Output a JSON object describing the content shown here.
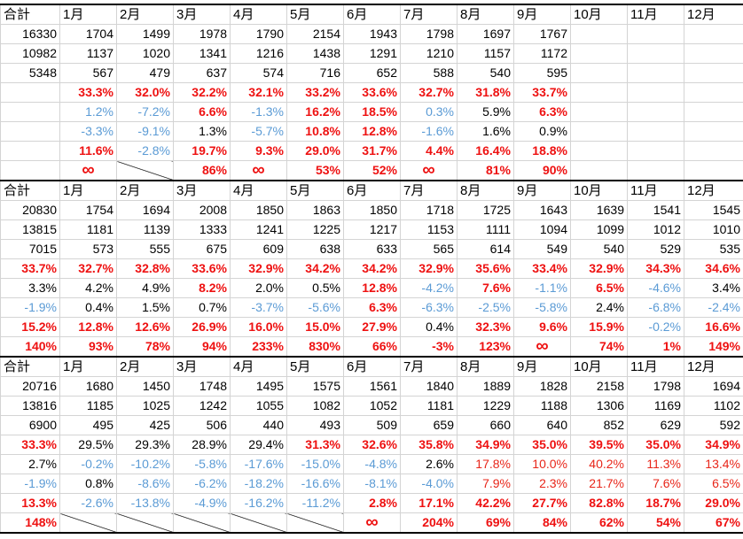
{
  "blocks": [
    {
      "header": [
        "合計",
        "1月",
        "2月",
        "3月",
        "4月",
        "5月",
        "6月",
        "7月",
        "8月",
        "9月",
        "10月",
        "11月",
        "12月"
      ],
      "rows": [
        [
          "16330",
          "1704",
          "1499",
          "1978",
          "1790",
          "2154",
          "1943",
          "1798",
          "1697",
          "1767",
          null,
          null,
          null
        ],
        [
          "10982",
          "1137",
          "1020",
          "1341",
          "1216",
          "1438",
          "1291",
          "1210",
          "1157",
          "1172",
          null,
          null,
          null
        ],
        [
          "5348",
          "567",
          "479",
          "637",
          "574",
          "716",
          "652",
          "588",
          "540",
          "595",
          null,
          null,
          null
        ],
        [
          null,
          "33.3%",
          "32.0%",
          "32.2%",
          "32.1%",
          "33.2%",
          "33.6%",
          "32.7%",
          "31.8%",
          "33.7%",
          null,
          null,
          null
        ],
        [
          null,
          "1.2%",
          "-7.2%",
          "6.6%",
          "-1.3%",
          "16.2%",
          "18.5%",
          "0.3%",
          "5.9%",
          "6.3%",
          null,
          null,
          null
        ],
        [
          null,
          "-3.3%",
          "-9.1%",
          "1.3%",
          "-5.7%",
          "10.8%",
          "12.8%",
          "-1.6%",
          "1.6%",
          "0.9%",
          null,
          null,
          null
        ],
        [
          null,
          "11.6%",
          "-2.8%",
          "19.7%",
          "9.3%",
          "29.0%",
          "31.7%",
          "4.4%",
          "16.4%",
          "18.8%",
          null,
          null,
          null
        ],
        [
          null,
          "∞",
          null,
          "86%",
          "∞",
          "53%",
          "52%",
          "∞",
          "81%",
          "90%",
          null,
          null,
          null
        ]
      ],
      "styles": [
        "black",
        "black",
        "black",
        "red-bold",
        [
          "black",
          "blue",
          "blue",
          "red-bold",
          "blue",
          "red-bold",
          "red-bold",
          "blue",
          "black",
          "red-bold",
          "black",
          "black",
          "black"
        ],
        [
          "black",
          "blue",
          "blue",
          "black",
          "blue",
          "red-bold",
          "red-bold",
          "blue",
          "black",
          "black",
          "black",
          "black",
          "black"
        ],
        [
          "black",
          "red-bold",
          "blue",
          "red-bold",
          "red-bold",
          "red-bold",
          "red-bold",
          "red-bold",
          "red-bold",
          "red-bold",
          "black",
          "black",
          "black"
        ],
        [
          "black",
          "red-bold",
          "diagonal",
          "red-bold",
          "red-bold",
          "red-bold",
          "red-bold",
          "red-bold",
          "red-bold",
          "red-bold",
          "black",
          "black",
          "black"
        ]
      ]
    },
    {
      "header": [
        "合計",
        "1月",
        "2月",
        "3月",
        "4月",
        "5月",
        "6月",
        "7月",
        "8月",
        "9月",
        "10月",
        "11月",
        "12月"
      ],
      "rows": [
        [
          "20830",
          "1754",
          "1694",
          "2008",
          "1850",
          "1863",
          "1850",
          "1718",
          "1725",
          "1643",
          "1639",
          "1541",
          "1545"
        ],
        [
          "13815",
          "1181",
          "1139",
          "1333",
          "1241",
          "1225",
          "1217",
          "1153",
          "1111",
          "1094",
          "1099",
          "1012",
          "1010"
        ],
        [
          "7015",
          "573",
          "555",
          "675",
          "609",
          "638",
          "633",
          "565",
          "614",
          "549",
          "540",
          "529",
          "535"
        ],
        [
          "33.7%",
          "32.7%",
          "32.8%",
          "33.6%",
          "32.9%",
          "34.2%",
          "34.2%",
          "32.9%",
          "35.6%",
          "33.4%",
          "32.9%",
          "34.3%",
          "34.6%"
        ],
        [
          "3.3%",
          "4.2%",
          "4.9%",
          "8.2%",
          "2.0%",
          "0.5%",
          "12.8%",
          "-4.2%",
          "7.6%",
          "-1.1%",
          "6.5%",
          "-4.6%",
          "3.4%"
        ],
        [
          "-1.9%",
          "0.4%",
          "1.5%",
          "0.7%",
          "-3.7%",
          "-5.6%",
          "6.3%",
          "-6.3%",
          "-2.5%",
          "-5.8%",
          "2.4%",
          "-6.8%",
          "-2.4%"
        ],
        [
          "15.2%",
          "12.8%",
          "12.6%",
          "26.9%",
          "16.0%",
          "15.0%",
          "27.9%",
          "0.4%",
          "32.3%",
          "9.6%",
          "15.9%",
          "-0.2%",
          "16.6%"
        ],
        [
          "140%",
          "93%",
          "78%",
          "94%",
          "233%",
          "830%",
          "66%",
          "-3%",
          "123%",
          "∞",
          "74%",
          "1%",
          "149%"
        ]
      ],
      "styles": [
        "black",
        "black",
        "black",
        "red-bold",
        [
          "black",
          "black",
          "black",
          "red-bold",
          "black",
          "black",
          "red-bold",
          "blue",
          "red-bold",
          "blue",
          "red-bold",
          "blue",
          "black"
        ],
        [
          "blue",
          "black",
          "black",
          "black",
          "blue",
          "blue",
          "red-bold",
          "blue",
          "blue",
          "blue",
          "black",
          "blue",
          "blue"
        ],
        [
          "red-bold",
          "red-bold",
          "red-bold",
          "red-bold",
          "red-bold",
          "red-bold",
          "red-bold",
          "black",
          "red-bold",
          "red-bold",
          "red-bold",
          "blue",
          "red-bold"
        ],
        "red-bold"
      ]
    },
    {
      "header": [
        "合計",
        "1月",
        "2月",
        "3月",
        "4月",
        "5月",
        "6月",
        "7月",
        "8月",
        "9月",
        "10月",
        "11月",
        "12月"
      ],
      "rows": [
        [
          "20716",
          "1680",
          "1450",
          "1748",
          "1495",
          "1575",
          "1561",
          "1840",
          "1889",
          "1828",
          "2158",
          "1798",
          "1694"
        ],
        [
          "13816",
          "1185",
          "1025",
          "1242",
          "1055",
          "1082",
          "1052",
          "1181",
          "1229",
          "1188",
          "1306",
          "1169",
          "1102"
        ],
        [
          "6900",
          "495",
          "425",
          "506",
          "440",
          "493",
          "509",
          "659",
          "660",
          "640",
          "852",
          "629",
          "592"
        ],
        [
          "33.3%",
          "29.5%",
          "29.3%",
          "28.9%",
          "29.4%",
          "31.3%",
          "32.6%",
          "35.8%",
          "34.9%",
          "35.0%",
          "39.5%",
          "35.0%",
          "34.9%"
        ],
        [
          "2.7%",
          "-0.2%",
          "-10.2%",
          "-5.8%",
          "-17.6%",
          "-15.0%",
          "-4.8%",
          "2.6%",
          "17.8%",
          "10.0%",
          "40.2%",
          "11.3%",
          "13.4%"
        ],
        [
          "-1.9%",
          "0.8%",
          "-8.6%",
          "-6.2%",
          "-18.2%",
          "-16.6%",
          "-8.1%",
          "-4.0%",
          "7.9%",
          "2.3%",
          "21.7%",
          "7.6%",
          "6.5%"
        ],
        [
          "13.3%",
          "-2.6%",
          "-13.8%",
          "-4.9%",
          "-16.2%",
          "-11.2%",
          "2.8%",
          "17.1%",
          "42.2%",
          "27.7%",
          "82.8%",
          "18.7%",
          "29.0%"
        ],
        [
          "148%",
          null,
          null,
          null,
          null,
          null,
          "∞",
          "204%",
          "69%",
          "84%",
          "62%",
          "54%",
          "67%"
        ]
      ],
      "styles": [
        "black",
        "black",
        "black",
        [
          "red-bold",
          "black",
          "black",
          "black",
          "black",
          "red-bold",
          "red-bold",
          "red-bold",
          "red-bold",
          "red-bold",
          "red-bold",
          "red-bold",
          "red-bold"
        ],
        [
          "black",
          "blue",
          "blue",
          "blue",
          "blue",
          "blue",
          "blue",
          "black",
          "red",
          "red",
          "red",
          "red",
          "red"
        ],
        [
          "blue",
          "black",
          "blue",
          "blue",
          "blue",
          "blue",
          "blue",
          "blue",
          "red",
          "red",
          "red",
          "red",
          "red"
        ],
        [
          "red-bold",
          "blue",
          "blue",
          "blue",
          "blue",
          "blue",
          "red-bold",
          "red-bold",
          "red-bold",
          "red-bold",
          "red-bold",
          "red-bold",
          "red-bold"
        ],
        [
          "red-bold",
          "diagonal",
          "diagonal",
          "diagonal",
          "diagonal",
          "diagonal",
          "red-bold",
          "red-bold",
          "red-bold",
          "red-bold",
          "red-bold",
          "red-bold",
          "red-bold"
        ]
      ]
    }
  ]
}
